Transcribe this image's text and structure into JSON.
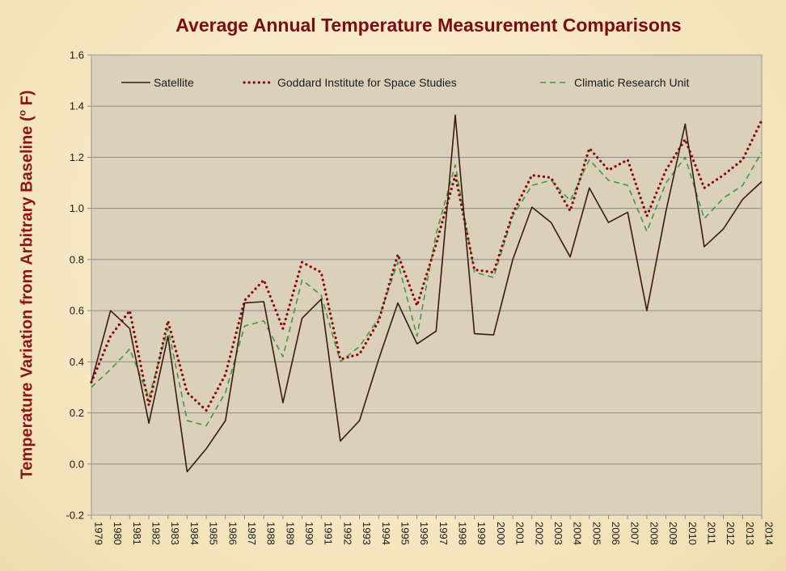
{
  "chart_data": {
    "type": "line",
    "title": "Average Annual Temperature Measurement Comparisons",
    "ylabel_main": "Temperature Variation from Arbitrary Baseline (",
    "ylabel_sup": "o",
    "ylabel_tail": " F)",
    "xlabel": "",
    "ylim": [
      -0.2,
      1.6
    ],
    "yticks": [
      "-0.2",
      "0.0",
      "0.2",
      "0.4",
      "0.6",
      "0.8",
      "1.0",
      "1.2",
      "1.4",
      "1.6"
    ],
    "categories": [
      "1979",
      "1980",
      "1981",
      "1982",
      "1983",
      "1984",
      "1985",
      "1986",
      "1987",
      "1988",
      "1989",
      "1990",
      "1991",
      "1992",
      "1993",
      "1994",
      "1995",
      "1996",
      "1997",
      "1998",
      "1999",
      "2000",
      "2001",
      "2002",
      "2003",
      "2004",
      "2005",
      "2006",
      "2007",
      "2008",
      "2009",
      "2010",
      "2011",
      "2012",
      "2013",
      "2014"
    ],
    "series": [
      {
        "name": "Satellite",
        "color": "#3a1a10",
        "style": "solid",
        "values": [
          0.32,
          0.6,
          0.53,
          0.16,
          0.5,
          -0.03,
          0.06,
          0.17,
          0.63,
          0.635,
          0.24,
          0.57,
          0.645,
          0.09,
          0.17,
          0.41,
          0.63,
          0.47,
          0.52,
          1.365,
          0.51,
          0.505,
          0.8,
          1.005,
          0.945,
          0.81,
          1.08,
          0.945,
          0.985,
          0.6,
          0.99,
          1.33,
          0.85,
          0.92,
          1.035,
          1.105
        ]
      },
      {
        "name": "Goddard Institute for Space Studies",
        "color": "#8b0a0a",
        "style": "dotted",
        "values": [
          0.32,
          0.5,
          0.6,
          0.23,
          0.56,
          0.28,
          0.21,
          0.35,
          0.64,
          0.72,
          0.53,
          0.79,
          0.75,
          0.41,
          0.43,
          0.56,
          0.82,
          0.62,
          0.86,
          1.13,
          0.76,
          0.75,
          0.98,
          1.13,
          1.12,
          0.99,
          1.235,
          1.15,
          1.19,
          0.97,
          1.15,
          1.27,
          1.08,
          1.13,
          1.19,
          1.345
        ]
      },
      {
        "name": "Climatic Research Unit",
        "color": "#3e9a3e",
        "style": "dashed",
        "values": [
          0.3,
          0.37,
          0.45,
          0.26,
          0.53,
          0.17,
          0.15,
          0.28,
          0.54,
          0.56,
          0.42,
          0.72,
          0.66,
          0.4,
          0.46,
          0.57,
          0.79,
          0.5,
          0.9,
          1.17,
          0.75,
          0.73,
          0.97,
          1.09,
          1.11,
          1.03,
          1.19,
          1.11,
          1.09,
          0.91,
          1.1,
          1.2,
          0.96,
          1.04,
          1.09,
          1.22
        ]
      }
    ],
    "legend_position": "top",
    "grid": true
  }
}
